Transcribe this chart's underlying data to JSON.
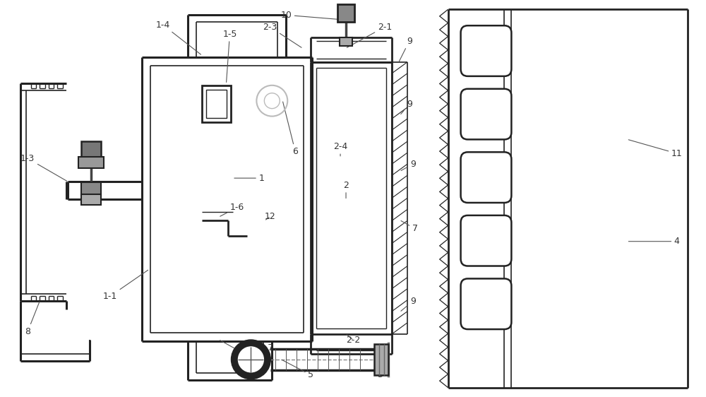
{
  "bg_color": "#ffffff",
  "line_color": "#222222",
  "label_color": "#333333",
  "lw_main": 1.8,
  "lw_thin": 1.0,
  "font_size": 9
}
